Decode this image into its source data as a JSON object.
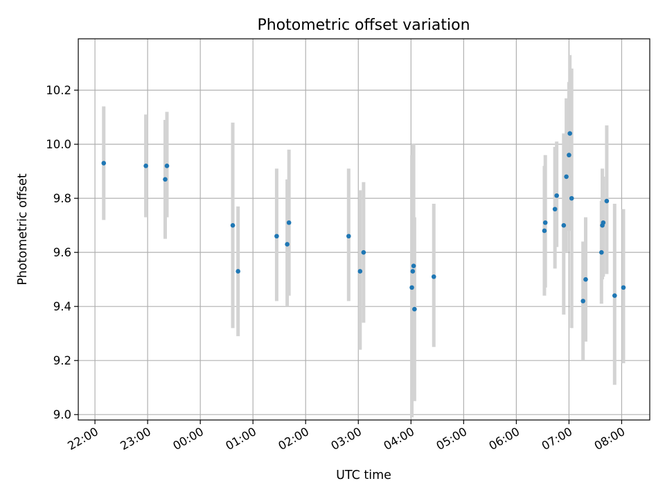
{
  "chart_data": {
    "type": "scatter",
    "title": "Photometric offset variation",
    "xlabel": "UTC time",
    "ylabel": "Photometric offset",
    "x_unit": "UTC time (HH:MM, night spanning midnight)",
    "xlim": [
      "21:41",
      "08:32"
    ],
    "ylim": [
      8.98,
      10.39
    ],
    "x_ticks": [
      "22:00",
      "23:00",
      "00:00",
      "01:00",
      "02:00",
      "03:00",
      "04:00",
      "05:00",
      "06:00",
      "07:00",
      "08:00"
    ],
    "y_ticks": [
      "9.0",
      "9.2",
      "9.4",
      "9.6",
      "9.8",
      "10.0",
      "10.2"
    ],
    "y_tick_values": [
      9.0,
      9.2,
      9.4,
      9.6,
      9.8,
      10.0,
      10.2
    ],
    "grid": true,
    "marker_color": "#1f77b4",
    "errorbar_color": "#d3d3d3",
    "points": [
      {
        "x": "22:10",
        "y": 9.93,
        "lo": 9.72,
        "hi": 10.14
      },
      {
        "x": "22:58",
        "y": 9.92,
        "lo": 9.73,
        "hi": 10.11
      },
      {
        "x": "23:20",
        "y": 9.87,
        "lo": 9.65,
        "hi": 10.09
      },
      {
        "x": "23:22",
        "y": 9.92,
        "lo": 9.73,
        "hi": 10.12
      },
      {
        "x": "00:37",
        "y": 9.7,
        "lo": 9.32,
        "hi": 10.08
      },
      {
        "x": "00:43",
        "y": 9.53,
        "lo": 9.29,
        "hi": 9.77
      },
      {
        "x": "01:27",
        "y": 9.66,
        "lo": 9.42,
        "hi": 9.91
      },
      {
        "x": "01:39",
        "y": 9.63,
        "lo": 9.4,
        "hi": 9.87
      },
      {
        "x": "01:41",
        "y": 9.71,
        "lo": 9.44,
        "hi": 9.98
      },
      {
        "x": "02:49",
        "y": 9.66,
        "lo": 9.42,
        "hi": 9.91
      },
      {
        "x": "03:02",
        "y": 9.53,
        "lo": 9.24,
        "hi": 9.83
      },
      {
        "x": "03:06",
        "y": 9.6,
        "lo": 9.34,
        "hi": 9.86
      },
      {
        "x": "04:01",
        "y": 9.47,
        "lo": 8.99,
        "hi": 9.96
      },
      {
        "x": "04:02",
        "y": 9.53,
        "lo": 9.07,
        "hi": 10.0
      },
      {
        "x": "04:03",
        "y": 9.55,
        "lo": 9.1,
        "hi": 10.0
      },
      {
        "x": "04:04",
        "y": 9.39,
        "lo": 9.05,
        "hi": 9.73
      },
      {
        "x": "04:26",
        "y": 9.51,
        "lo": 9.25,
        "hi": 9.78
      },
      {
        "x": "06:32",
        "y": 9.68,
        "lo": 9.44,
        "hi": 9.92
      },
      {
        "x": "06:33",
        "y": 9.71,
        "lo": 9.47,
        "hi": 9.96
      },
      {
        "x": "06:44",
        "y": 9.76,
        "lo": 9.54,
        "hi": 9.99
      },
      {
        "x": "06:46",
        "y": 9.81,
        "lo": 9.62,
        "hi": 10.01
      },
      {
        "x": "06:54",
        "y": 9.7,
        "lo": 9.37,
        "hi": 10.04
      },
      {
        "x": "06:57",
        "y": 9.88,
        "lo": 9.6,
        "hi": 10.17
      },
      {
        "x": "07:00",
        "y": 9.96,
        "lo": 9.68,
        "hi": 10.23
      },
      {
        "x": "07:01",
        "y": 10.04,
        "lo": 9.75,
        "hi": 10.33
      },
      {
        "x": "07:03",
        "y": 9.8,
        "lo": 9.32,
        "hi": 10.28
      },
      {
        "x": "07:16",
        "y": 9.42,
        "lo": 9.2,
        "hi": 9.64
      },
      {
        "x": "07:19",
        "y": 9.5,
        "lo": 9.27,
        "hi": 9.73
      },
      {
        "x": "07:37",
        "y": 9.6,
        "lo": 9.41,
        "hi": 9.79
      },
      {
        "x": "07:38",
        "y": 9.7,
        "lo": 9.5,
        "hi": 9.91
      },
      {
        "x": "07:39",
        "y": 9.71,
        "lo": 9.51,
        "hi": 9.88
      },
      {
        "x": "07:43",
        "y": 9.79,
        "lo": 9.52,
        "hi": 10.07
      },
      {
        "x": "07:52",
        "y": 9.44,
        "lo": 9.11,
        "hi": 9.78
      },
      {
        "x": "08:02",
        "y": 9.47,
        "lo": 9.19,
        "hi": 9.76
      }
    ]
  }
}
